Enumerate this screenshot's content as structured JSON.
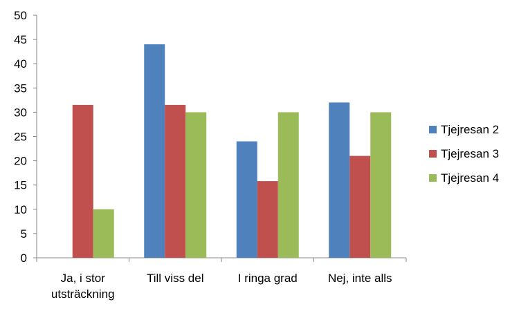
{
  "chart_data": {
    "type": "bar",
    "title": "",
    "xlabel": "",
    "ylabel": "",
    "ylim": [
      0,
      50
    ],
    "yticks": [
      "0",
      "5",
      "10",
      "15",
      "20",
      "25",
      "30",
      "35",
      "40",
      "45",
      "50"
    ],
    "grid": false,
    "legend_position": "right",
    "categories": [
      [
        "Ja, i stor",
        "utsträckning"
      ],
      [
        "Till viss del"
      ],
      [
        "I ringa grad"
      ],
      [
        "Nej, inte alls"
      ]
    ],
    "series": [
      {
        "name": "Tjejresan 2",
        "color": "#4F81BD",
        "values": [
          0,
          44,
          24,
          32
        ]
      },
      {
        "name": "Tjejresan 3",
        "color": "#C0504D",
        "values": [
          31.5,
          31.5,
          15.8,
          21
        ]
      },
      {
        "name": "Tjejresan 4",
        "color": "#9BBB59",
        "values": [
          10,
          30,
          30,
          30
        ]
      }
    ]
  }
}
